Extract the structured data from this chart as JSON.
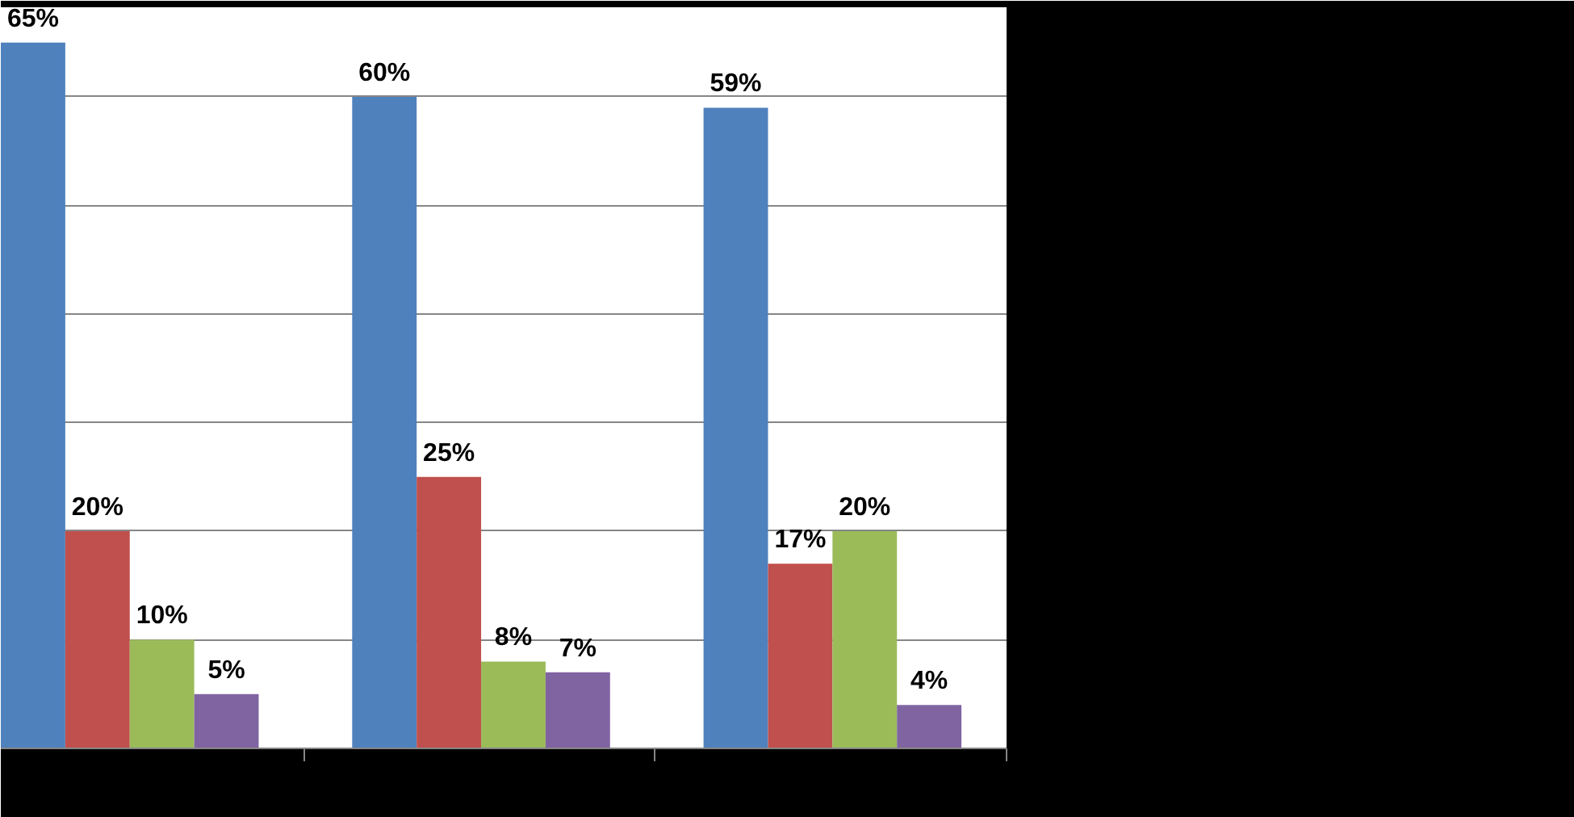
{
  "chart_data": {
    "type": "bar",
    "categories": [
      null,
      null,
      null
    ],
    "series": [
      {
        "color": "#4f81bd",
        "values": [
          65,
          60,
          59
        ],
        "value_labels": [
          "65%",
          "60%",
          "59%"
        ]
      },
      {
        "color": "#c0504d",
        "values": [
          20,
          25,
          17
        ],
        "value_labels": [
          "20%",
          "25%",
          "17%"
        ]
      },
      {
        "color": "#9bbb59",
        "values": [
          10,
          8,
          20
        ],
        "value_labels": [
          "10%",
          "8%",
          "20%"
        ]
      },
      {
        "color": "#8064a2",
        "values": [
          5,
          7,
          4
        ],
        "value_labels": [
          "5%",
          "7%",
          "4%"
        ]
      }
    ],
    "grid": "y",
    "tick_labels": false
  }
}
